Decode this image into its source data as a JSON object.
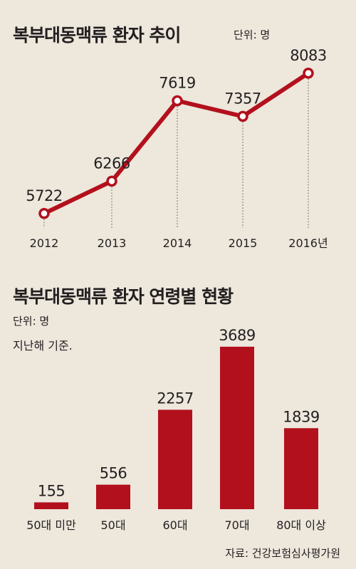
{
  "line_section": {
    "title": "복부대동맥류 환자 추이",
    "unit": "단위: 명"
  },
  "bar_section": {
    "title": "복부대동맥류 환자 연령별 현황",
    "unit": "단위: 명",
    "note": "지난해 기준."
  },
  "source": "자료: 건강보험심사평가원",
  "colors": {
    "accent": "#b3101d",
    "background": "#ede7dc",
    "text": "#231f20"
  },
  "chart_data": [
    {
      "type": "line",
      "title": "복부대동맥류 환자 추이",
      "unit": "단위: 명",
      "categories": [
        "2012",
        "2013",
        "2014",
        "2015",
        "2016년"
      ],
      "values": [
        5722,
        6266,
        7619,
        7357,
        8083
      ],
      "ylim": [
        5000,
        8500
      ],
      "grid": "vertical dotted guides"
    },
    {
      "type": "bar",
      "title": "복부대동맥류 환자 연령별 현황",
      "unit": "단위: 명",
      "categories": [
        "50대 미만",
        "50대",
        "60대",
        "70대",
        "80대 이상"
      ],
      "values": [
        155,
        556,
        2257,
        3689,
        1839
      ],
      "ylim": [
        0,
        3800
      ]
    }
  ]
}
